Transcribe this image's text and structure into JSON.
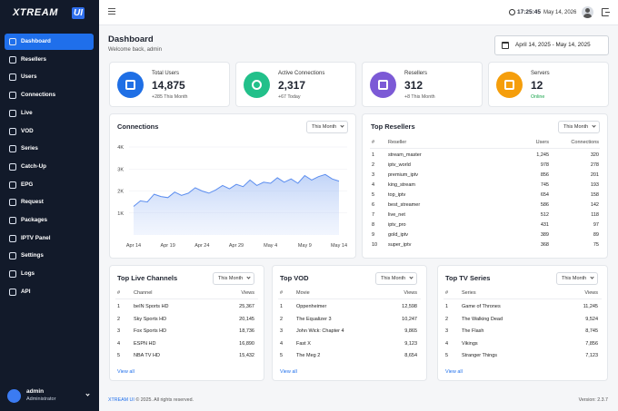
{
  "sidebar": {
    "logo": {
      "text": "XTREAM",
      "badge": "UI"
    },
    "menu": [
      "Dashboard",
      "Resellers",
      "Users",
      "Connections",
      "Live",
      "VOD",
      "Series",
      "Catch-Up",
      "EPG",
      "Request",
      "Packages",
      "IPTV Panel",
      "Settings",
      "Logs",
      "API"
    ],
    "user": {
      "name": "admin",
      "role": "Administrator"
    }
  },
  "topbar": {
    "time": "17:25:45",
    "date": "May 14, 2026"
  },
  "header": {
    "title": "Dashboard",
    "subtitle": "Welcome back, admin",
    "date_range": "April 14, 2025 - May 14, 2025"
  },
  "stats": [
    {
      "label": "Total Users",
      "value": "14,875",
      "note": "+285 This Month"
    },
    {
      "label": "Active Connections",
      "value": "2,317",
      "note": "+67 Today"
    },
    {
      "label": "Resellers",
      "value": "312",
      "note": "+8 This Month"
    },
    {
      "label": "Servers",
      "value": "12",
      "note": "Online"
    }
  ],
  "connections": {
    "title": "Connections",
    "period": "This Month",
    "ylim": [
      0,
      4000
    ],
    "yticks": [
      {
        "value": 1000,
        "label": "1K"
      },
      {
        "value": 2000,
        "label": "2K"
      },
      {
        "value": 3000,
        "label": "3K"
      },
      {
        "value": 4000,
        "label": "4K"
      }
    ],
    "categories": [
      "Apr 14",
      null,
      null,
      null,
      null,
      "Apr 19",
      null,
      null,
      null,
      null,
      "Apr 24",
      null,
      null,
      null,
      null,
      "Apr 29",
      null,
      null,
      null,
      null,
      "May 4",
      null,
      null,
      null,
      null,
      "May 9",
      null,
      null,
      null,
      null,
      "May 14"
    ],
    "values": [
      1300,
      1550,
      1500,
      1850,
      1750,
      1700,
      1950,
      1800,
      1900,
      2150,
      2000,
      1900,
      2050,
      2250,
      2100,
      2300,
      2200,
      2500,
      2250,
      2400,
      2350,
      2600,
      2400,
      2550,
      2350,
      2700,
      2500,
      2650,
      2750,
      2550,
      2450
    ]
  },
  "top_resellers": {
    "title": "Top Resellers",
    "period": "This Month",
    "columns": [
      "#",
      "Reseller",
      "Users",
      "Connections"
    ],
    "rows": [
      [
        "1",
        "stream_master",
        "1,245",
        "320"
      ],
      [
        "2",
        "iptv_world",
        "978",
        "278"
      ],
      [
        "3",
        "premium_iptv",
        "856",
        "201"
      ],
      [
        "4",
        "king_stream",
        "745",
        "193"
      ],
      [
        "5",
        "top_iptv",
        "654",
        "158"
      ],
      [
        "6",
        "best_streamer",
        "586",
        "142"
      ],
      [
        "7",
        "live_net",
        "512",
        "118"
      ],
      [
        "8",
        "iptv_pro",
        "431",
        "97"
      ],
      [
        "9",
        "gold_iptv",
        "389",
        "89"
      ],
      [
        "10",
        "super_iptv",
        "368",
        "75"
      ]
    ]
  },
  "tables": [
    {
      "title": "Top Live Channels",
      "period": "This Month",
      "columns": [
        "#",
        "Channel",
        "Views"
      ],
      "rows": [
        [
          "1",
          "beIN Sports HD",
          "25,367"
        ],
        [
          "2",
          "Sky Sports HD",
          "20,145"
        ],
        [
          "3",
          "Fox Sports HD",
          "18,736"
        ],
        [
          "4",
          "ESPN HD",
          "16,890"
        ],
        [
          "5",
          "NBA TV HD",
          "15,432"
        ]
      ],
      "link": "View all"
    },
    {
      "title": "Top VOD",
      "period": "This Month",
      "columns": [
        "#",
        "Movie",
        "Views"
      ],
      "rows": [
        [
          "1",
          "Oppenheimer",
          "12,598"
        ],
        [
          "2",
          "The Equalizer 3",
          "10,247"
        ],
        [
          "3",
          "John Wick: Chapter 4",
          "9,865"
        ],
        [
          "4",
          "Fast X",
          "9,123"
        ],
        [
          "5",
          "The Meg 2",
          "8,654"
        ]
      ],
      "link": "View all"
    },
    {
      "title": "Top TV Series",
      "period": "This Month",
      "columns": [
        "#",
        "Series",
        "Views"
      ],
      "rows": [
        [
          "1",
          "Game of Thrones",
          "11,245"
        ],
        [
          "2",
          "The Walking Dead",
          "9,524"
        ],
        [
          "3",
          "The Flash",
          "8,745"
        ],
        [
          "4",
          "Vikings",
          "7,856"
        ],
        [
          "5",
          "Stranger Things",
          "7,123"
        ]
      ],
      "link": "View all"
    }
  ],
  "footer": {
    "brand": "XTREAM UI",
    "copyright": " © 2025. All rights reserved.",
    "version": "Version: 2.3.7"
  }
}
